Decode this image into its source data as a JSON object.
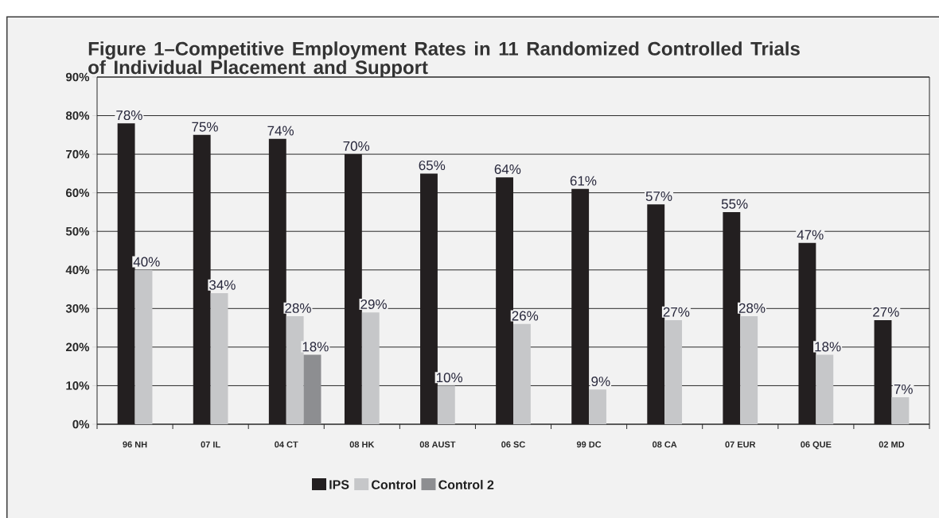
{
  "chart_data": {
    "type": "bar",
    "title": "Figure 1–Competitive Employment Rates in 11 Randomized Controlled Trials of Individual Placement and Support",
    "categories": [
      "96 NH",
      "07 IL",
      "04 CT",
      "08 HK",
      "08 AUST",
      "06 SC",
      "99 DC",
      "08 CA",
      "07 EUR",
      "06 QUE",
      "02 MD"
    ],
    "series": [
      {
        "name": "IPS",
        "color": "#231f20",
        "values": [
          78,
          75,
          74,
          70,
          65,
          64,
          61,
          57,
          55,
          47,
          27
        ],
        "value_labels": [
          "78%",
          "75%",
          "74%",
          "70%",
          "65%",
          "64%",
          "61%",
          "57%",
          "55%",
          "47%",
          "27%"
        ]
      },
      {
        "name": "Control",
        "color": "#c6c7c9",
        "values": [
          40,
          34,
          28,
          29,
          10,
          26,
          9,
          27,
          28,
          18,
          7
        ],
        "value_labels": [
          "40%",
          "34%",
          "28%",
          "29%",
          "10%",
          "26%",
          "9%",
          "27%",
          "28%",
          "18%",
          "7%"
        ]
      },
      {
        "name": "Control 2",
        "color": "#8d8e91",
        "values": [
          null,
          null,
          18,
          null,
          null,
          null,
          null,
          null,
          null,
          null,
          null
        ],
        "value_labels": [
          null,
          null,
          "18%",
          null,
          null,
          null,
          null,
          null,
          null,
          null,
          null
        ]
      }
    ],
    "ylim": [
      0,
      90
    ],
    "yticks": [
      {
        "value": 0,
        "label": "0%"
      },
      {
        "value": 10,
        "label": "10%"
      },
      {
        "value": 20,
        "label": "20%"
      },
      {
        "value": 30,
        "label": "30%"
      },
      {
        "value": 40,
        "label": "40%"
      },
      {
        "value": 50,
        "label": "50%"
      },
      {
        "value": 60,
        "label": "60%"
      },
      {
        "value": 70,
        "label": "70%"
      },
      {
        "value": 80,
        "label": "80%"
      },
      {
        "value": 90,
        "label": "90%"
      }
    ],
    "grid": "y",
    "legend": "bottom"
  }
}
